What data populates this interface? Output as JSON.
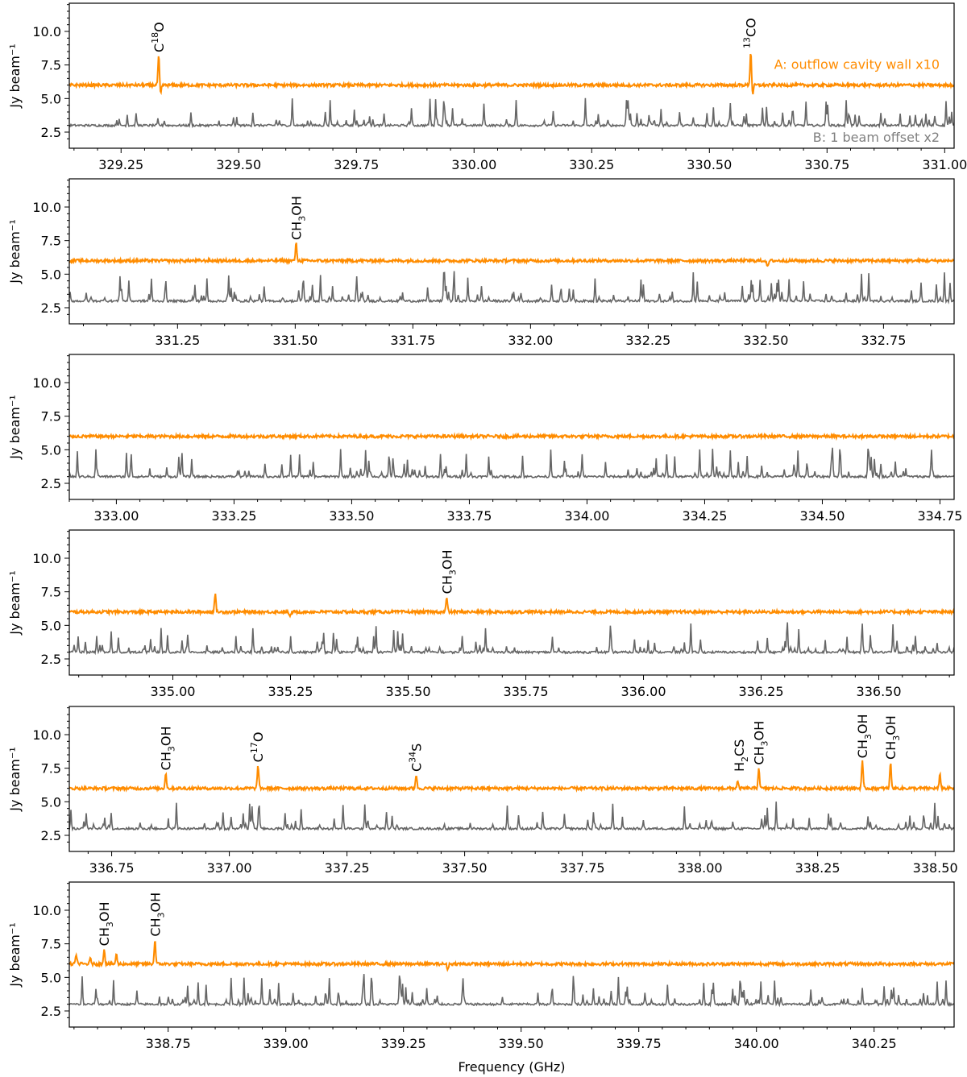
{
  "chart_data": {
    "type": "line",
    "ylabel": "Jy beam⁻¹",
    "xlabel": "Frequency (GHz)",
    "ylim": [
      1.3,
      12.1
    ],
    "yticks": [
      2.5,
      5.0,
      7.5,
      10.0
    ],
    "yticklabels": [
      "2.5",
      "5.0",
      "7.5",
      "10.0"
    ],
    "series_style": [
      {
        "key": "A",
        "color": "#ff8c00",
        "baseline": 6.0
      },
      {
        "key": "B",
        "color": "#666666",
        "baseline": 3.0
      }
    ],
    "legend": [
      {
        "text": "A: outflow cavity wall x10",
        "color": "#ff8c00",
        "location": "upper-right"
      },
      {
        "text": "B: 1 beam offset x2",
        "color": "#808080",
        "location": "lower-right"
      }
    ],
    "panels": [
      {
        "xlim": [
          329.14,
          331.02
        ],
        "xticks": [
          329.25,
          329.5,
          329.75,
          330.0,
          330.25,
          330.5,
          330.75,
          331.0
        ],
        "xticklabels": [
          "329.25",
          "329.50",
          "329.75",
          "330.00",
          "330.25",
          "330.50",
          "330.75",
          "331.00"
        ],
        "A_peaks": [
          [
            329.33,
            8.2
          ],
          [
            330.588,
            8.5
          ]
        ],
        "A_dips": [
          [
            329.33,
            5.3
          ],
          [
            330.588,
            5.3
          ]
        ],
        "lines": [
          {
            "x": 329.33,
            "main": "C",
            "sup": "18",
            "tail": "O"
          },
          {
            "x": 330.588,
            "main": "",
            "sup": "13",
            "tail": "CO"
          }
        ]
      },
      {
        "xlim": [
          331.02,
          332.9
        ],
        "xticks": [
          331.25,
          331.5,
          331.75,
          332.0,
          332.25,
          332.5,
          332.75
        ],
        "xticklabels": [
          "331.25",
          "331.50",
          "331.75",
          "332.00",
          "332.25",
          "332.50",
          "332.75"
        ],
        "A_peaks": [
          [
            331.502,
            7.3
          ]
        ],
        "A_dips": [
          [
            332.5,
            5.5
          ]
        ],
        "lines": [
          {
            "x": 331.502,
            "main": "CH",
            "sub": "3",
            "tail": "OH"
          }
        ]
      },
      {
        "xlim": [
          332.9,
          334.78
        ],
        "xticks": [
          333.0,
          333.25,
          333.5,
          333.75,
          334.0,
          334.25,
          334.5,
          334.75
        ],
        "xticklabels": [
          "333.00",
          "333.25",
          "333.50",
          "333.75",
          "334.00",
          "334.25",
          "334.50",
          "334.75"
        ],
        "A_peaks": [],
        "A_dips": [],
        "lines": []
      },
      {
        "xlim": [
          334.78,
          336.66
        ],
        "xticks": [
          335.0,
          335.25,
          335.5,
          335.75,
          336.0,
          336.25,
          336.5
        ],
        "xticklabels": [
          "335.00",
          "335.25",
          "335.50",
          "335.75",
          "336.00",
          "336.25",
          "336.50"
        ],
        "A_peaks": [
          [
            335.09,
            7.3
          ],
          [
            335.582,
            7.1
          ]
        ],
        "A_dips": [
          [
            335.245,
            5.6
          ]
        ],
        "lines": [
          {
            "x": 335.582,
            "main": "CH",
            "sub": "3",
            "tail": "OH"
          }
        ]
      },
      {
        "xlim": [
          336.66,
          338.54
        ],
        "xticks": [
          336.75,
          337.0,
          337.25,
          337.5,
          337.75,
          338.0,
          338.25,
          338.5
        ],
        "xticklabels": [
          "336.75",
          "337.00",
          "337.25",
          "337.50",
          "337.75",
          "338.00",
          "338.25",
          "338.50"
        ],
        "A_peaks": [
          [
            336.865,
            7.1
          ],
          [
            337.061,
            7.7
          ],
          [
            337.397,
            7.0
          ],
          [
            338.08,
            6.5
          ],
          [
            338.125,
            7.5
          ],
          [
            338.345,
            8.0
          ],
          [
            338.405,
            7.9
          ],
          [
            338.51,
            7.0
          ]
        ],
        "A_dips": [],
        "lines": [
          {
            "x": 336.865,
            "main": "CH",
            "sub": "3",
            "tail": "OH"
          },
          {
            "x": 337.061,
            "main": "C",
            "sup": "17",
            "tail": "O"
          },
          {
            "x": 337.397,
            "main": "C",
            "sup": "34",
            "tail": "S"
          },
          {
            "x": 338.083,
            "main": "H",
            "sub": "2",
            "tail": "CS"
          },
          {
            "x": 338.125,
            "main": "CH",
            "sub": "3",
            "tail": "OH"
          },
          {
            "x": 338.345,
            "main": "CH",
            "sub": "3",
            "tail": "OH"
          },
          {
            "x": 338.405,
            "main": "CH",
            "sub": "3",
            "tail": "OH"
          }
        ]
      },
      {
        "xlim": [
          338.54,
          340.42
        ],
        "xticks": [
          338.75,
          339.0,
          339.25,
          339.5,
          339.75,
          340.0,
          340.25
        ],
        "xticklabels": [
          "338.75",
          "339.00",
          "339.25",
          "339.50",
          "339.75",
          "340.00",
          "340.25"
        ],
        "A_peaks": [
          [
            338.555,
            6.7
          ],
          [
            338.585,
            6.4
          ],
          [
            338.614,
            7.1
          ],
          [
            338.64,
            6.7
          ],
          [
            338.722,
            7.8
          ]
        ],
        "A_dips": [
          [
            339.34,
            5.6
          ]
        ],
        "lines": [
          {
            "x": 338.614,
            "main": "CH",
            "sub": "3",
            "tail": "OH"
          },
          {
            "x": 338.722,
            "main": "CH",
            "sub": "3",
            "tail": "OH"
          }
        ]
      }
    ]
  }
}
